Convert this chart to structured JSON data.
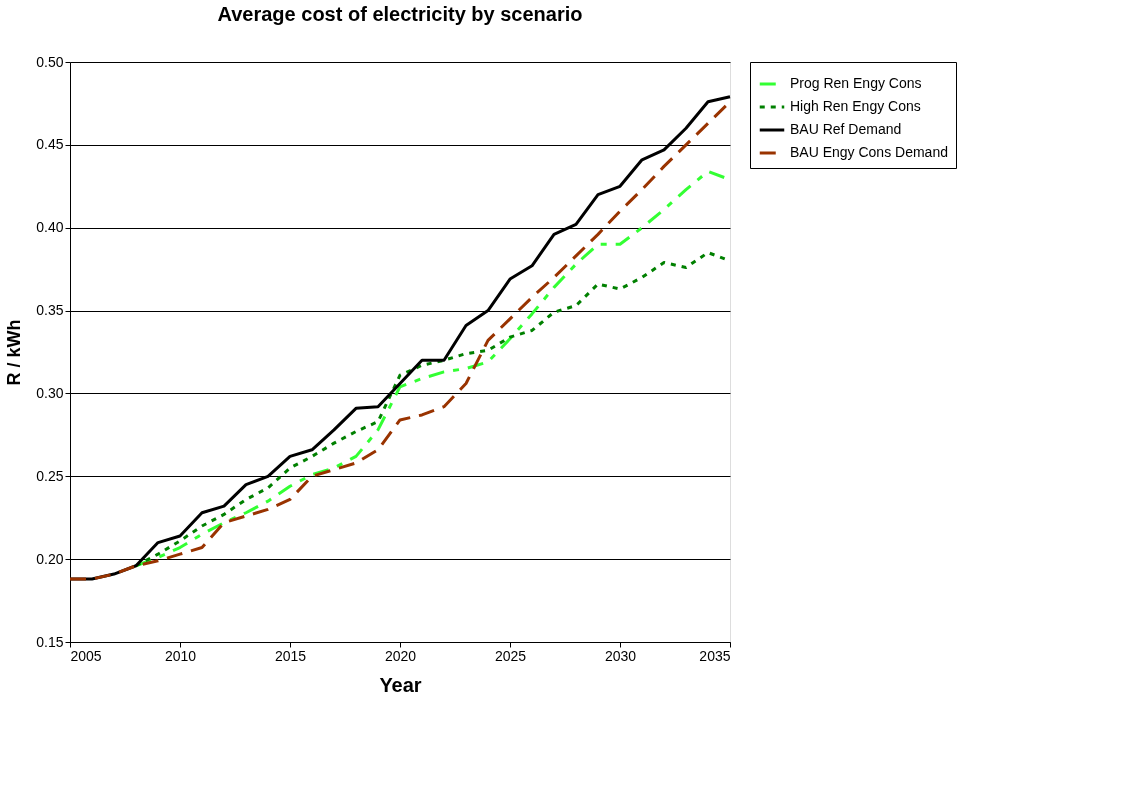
{
  "chart_data": {
    "type": "line",
    "title": "Average cost of electricity by scenario",
    "xlabel": "Year",
    "ylabel": "R / kWh",
    "x": [
      2005,
      2006,
      2007,
      2008,
      2009,
      2010,
      2011,
      2012,
      2013,
      2014,
      2015,
      2016,
      2017,
      2018,
      2019,
      2020,
      2021,
      2022,
      2023,
      2024,
      2025,
      2026,
      2027,
      2028,
      2029,
      2030,
      2031,
      2032,
      2033,
      2034,
      2035
    ],
    "series": [
      {
        "name": "Prog Ren Engy Cons",
        "color": "#33ff33",
        "line_style": "dashed",
        "values": [
          null,
          null,
          null,
          0.196,
          0.201,
          0.207,
          0.215,
          0.222,
          0.228,
          0.235,
          0.244,
          0.251,
          0.255,
          0.262,
          0.278,
          0.304,
          0.309,
          0.313,
          0.315,
          0.319,
          0.333,
          0.348,
          0.364,
          0.378,
          0.39,
          0.39,
          0.4,
          0.411,
          0.423,
          0.434,
          0.429
        ]
      },
      {
        "name": "High Ren Engy Cons",
        "color": "#008000",
        "line_style": "dotted",
        "values": [
          null,
          null,
          null,
          0.196,
          0.203,
          0.211,
          0.22,
          0.227,
          0.236,
          0.243,
          0.255,
          0.262,
          0.27,
          0.277,
          0.283,
          0.311,
          0.317,
          0.32,
          0.324,
          0.326,
          0.334,
          0.338,
          0.349,
          0.353,
          0.366,
          0.363,
          0.37,
          0.379,
          0.376,
          0.385,
          0.38
        ]
      },
      {
        "name": "BAU Ref Demand",
        "color": "#000000",
        "line_style": "solid",
        "values": [
          0.188,
          0.188,
          0.191,
          0.196,
          0.21,
          0.214,
          0.228,
          0.232,
          0.245,
          0.25,
          0.262,
          0.266,
          0.278,
          0.291,
          0.292,
          0.306,
          0.32,
          0.32,
          0.341,
          0.35,
          0.369,
          0.377,
          0.396,
          0.402,
          0.42,
          0.425,
          0.441,
          0.447,
          0.46,
          0.476,
          0.479
        ]
      },
      {
        "name": "BAU Engy Cons Demand",
        "color": "#993300",
        "line_style": "dashed",
        "values": [
          0.188,
          0.188,
          0.191,
          0.196,
          0.199,
          0.203,
          0.207,
          0.222,
          0.226,
          0.23,
          0.236,
          0.25,
          0.254,
          0.258,
          0.266,
          0.284,
          0.287,
          0.292,
          0.306,
          0.332,
          0.345,
          0.358,
          0.37,
          0.383,
          0.396,
          0.41,
          0.423,
          0.437,
          0.45,
          0.463,
          0.476
        ]
      }
    ],
    "xlim": [
      2005,
      2035
    ],
    "xticks": [
      2005,
      2010,
      2015,
      2020,
      2025,
      2030,
      2035
    ],
    "ylim": [
      0.15,
      0.5
    ],
    "yticks": [
      0.15,
      {
        "value": 0.2,
        "label": "0.20"
      },
      0.25,
      {
        "value": 0.3,
        "label": "0.30"
      },
      0.35,
      {
        "value": 0.4,
        "label": "0.40"
      },
      0.45,
      {
        "value": 0.5,
        "label": "0.50"
      }
    ],
    "grid": "y",
    "legend": "right",
    "marker": "none"
  }
}
